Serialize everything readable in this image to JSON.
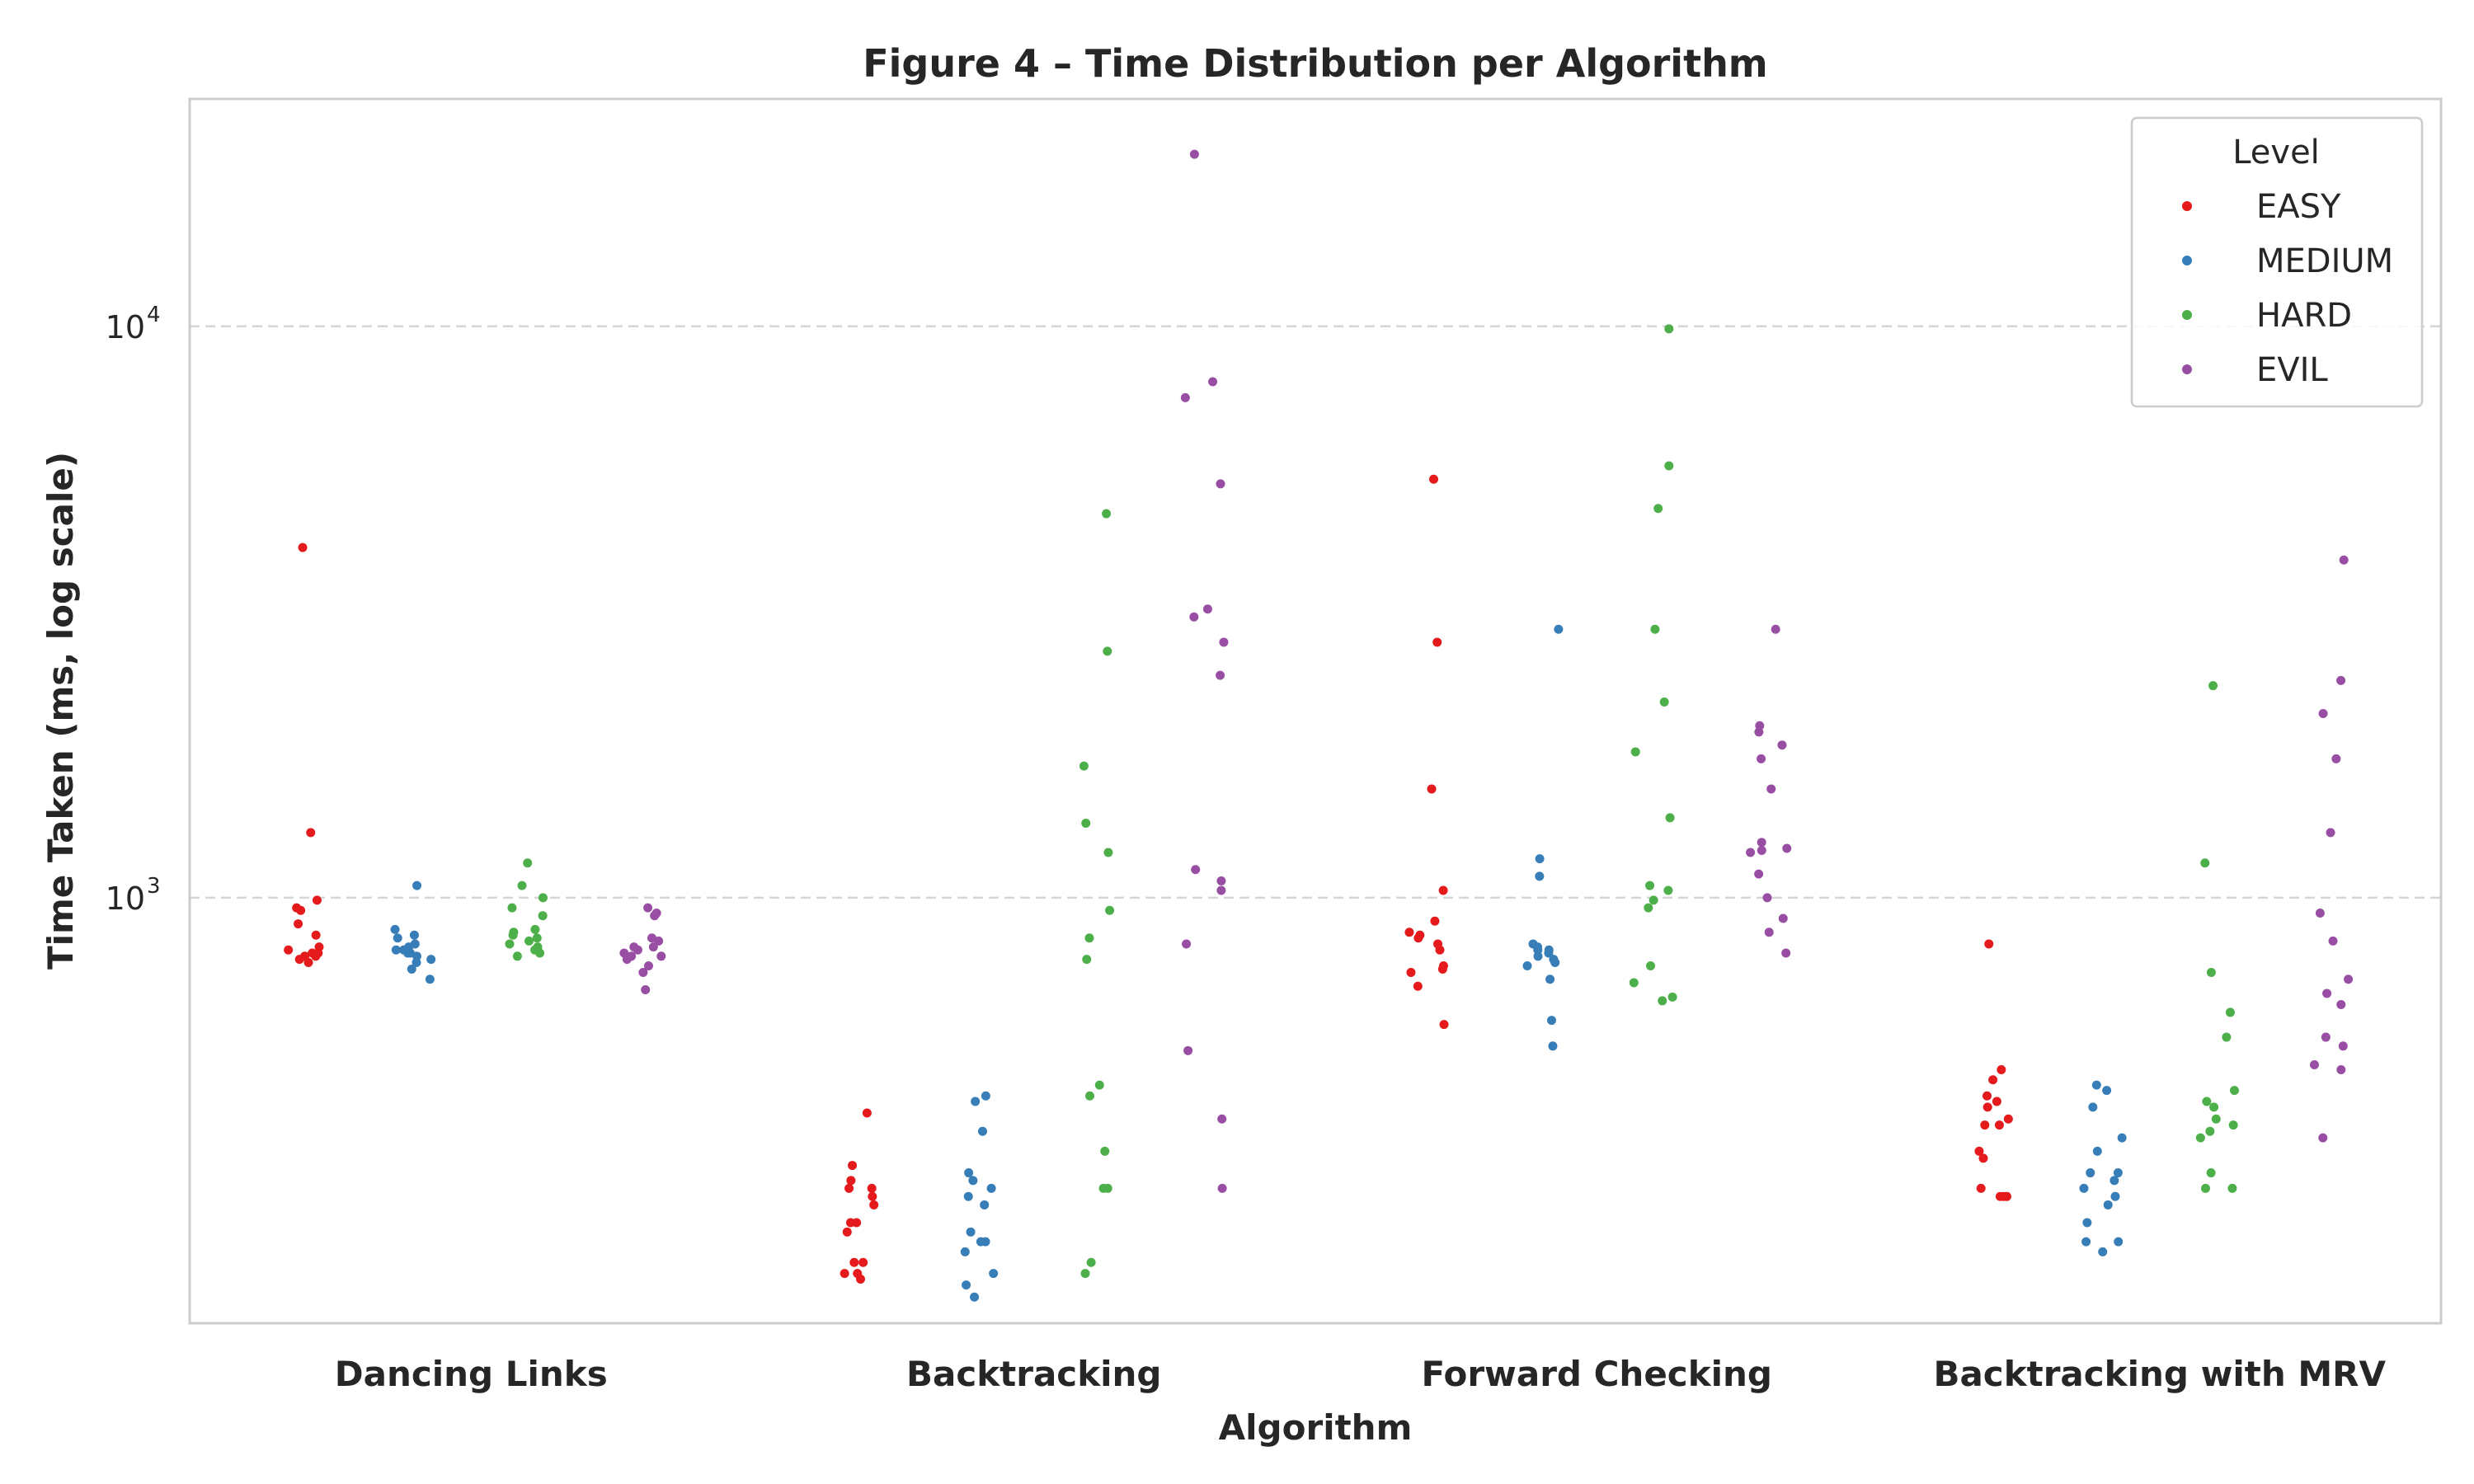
{
  "chart_data": {
    "type": "scatter",
    "subtype": "strip",
    "title": "Figure 4 – Time Distribution per Algorithm",
    "xlabel": "Algorithm",
    "ylabel": "Time Taken (ms, log scale)",
    "yscale": "log",
    "ylim": [
      180,
      25000
    ],
    "yticks": [
      {
        "value": 1000,
        "base": "10",
        "exp": "3"
      },
      {
        "value": 10000,
        "base": "10",
        "exp": "4"
      }
    ],
    "grid": "horizontal dashed",
    "categories": [
      "Dancing Links",
      "Backtracking",
      "Forward Checking",
      "Backtracking with MRV"
    ],
    "legend": {
      "title": "Level",
      "placement": "top-right"
    },
    "series": [
      {
        "name": "EASY",
        "color": "#e41a1c",
        "values": [
          [
            4100,
            1300,
            990,
            960,
            950,
            900,
            860,
            820,
            810,
            800,
            800,
            790,
            790,
            780,
            770
          ],
          [
            420,
            340,
            320,
            310,
            310,
            300,
            290,
            270,
            270,
            260,
            230,
            230,
            220,
            220,
            215
          ],
          [
            5400,
            2800,
            1550,
            1030,
            910,
            870,
            860,
            850,
            830,
            810,
            760,
            750,
            740,
            700,
            600
          ],
          [
            830,
            500,
            480,
            450,
            440,
            430,
            410,
            400,
            400,
            360,
            350,
            310,
            300,
            300,
            300
          ]
        ]
      },
      {
        "name": "MEDIUM",
        "color": "#377eb8",
        "values": [
          [
            1050,
            880,
            860,
            850,
            830,
            820,
            810,
            810,
            800,
            800,
            790,
            780,
            770,
            750,
            720
          ],
          [
            450,
            440,
            390,
            330,
            320,
            310,
            300,
            290,
            260,
            250,
            250,
            240,
            220,
            210,
            200
          ],
          [
            2950,
            1170,
            1090,
            830,
            820,
            810,
            810,
            800,
            790,
            780,
            770,
            760,
            720,
            610,
            550
          ],
          [
            470,
            460,
            430,
            380,
            360,
            330,
            330,
            320,
            310,
            300,
            290,
            270,
            250,
            250,
            240
          ]
        ]
      },
      {
        "name": "HARD",
        "color": "#4daf4a",
        "values": [
          [
            1150,
            1050,
            1000,
            960,
            930,
            880,
            870,
            860,
            850,
            840,
            830,
            820,
            810,
            800,
            790
          ],
          [
            4700,
            2700,
            1700,
            1350,
            1200,
            950,
            850,
            780,
            470,
            450,
            360,
            310,
            310,
            230,
            220
          ],
          [
            9900,
            5700,
            4800,
            2950,
            2200,
            1800,
            1380,
            1050,
            1030,
            990,
            960,
            760,
            710,
            670,
            660
          ],
          [
            2350,
            1150,
            740,
            630,
            570,
            460,
            440,
            430,
            410,
            400,
            390,
            380,
            330,
            310,
            310
          ]
        ]
      },
      {
        "name": "EVIL",
        "color": "#984ea3",
        "values": [
          [
            960,
            940,
            930,
            850,
            840,
            820,
            820,
            810,
            800,
            790,
            790,
            780,
            760,
            740,
            690
          ],
          [
            20000,
            8000,
            7500,
            5300,
            3200,
            3100,
            2800,
            2450,
            1120,
            1070,
            1030,
            830,
            540,
            410,
            310
          ],
          [
            2950,
            2000,
            1950,
            1850,
            1750,
            1550,
            1250,
            1220,
            1210,
            1200,
            1100,
            1000,
            920,
            870,
            800
          ],
          [
            3900,
            2400,
            2100,
            1750,
            1300,
            940,
            840,
            720,
            680,
            650,
            570,
            550,
            510,
            500,
            380
          ]
        ]
      }
    ]
  }
}
